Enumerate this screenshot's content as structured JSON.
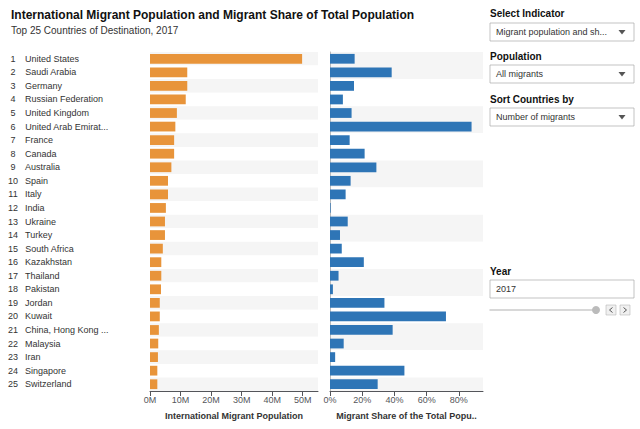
{
  "chart_data": [
    {
      "type": "bar",
      "orientation": "horizontal",
      "title": "International Migrant Population and Migrant Share of Total Population",
      "subtitle": "Top 25 Countries of Destination, 2017",
      "categories": [
        "United States",
        "Saudi Arabia",
        "Germany",
        "Russian Federation",
        "United Kingdom",
        "United Arab Emirat...",
        "France",
        "Canada",
        "Australia",
        "Spain",
        "Italy",
        "India",
        "Ukraine",
        "Turkey",
        "South Africa",
        "Kazakhstan",
        "Thailand",
        "Pakistan",
        "Jordan",
        "Kuwait",
        "China, Hong Kong ...",
        "Malaysia",
        "Iran",
        "Singapore",
        "Switzerland"
      ],
      "ranks": [
        1,
        2,
        3,
        4,
        5,
        6,
        7,
        8,
        9,
        10,
        11,
        12,
        13,
        14,
        15,
        16,
        17,
        18,
        19,
        20,
        21,
        22,
        23,
        24,
        25
      ],
      "values": [
        49.8,
        12.2,
        12.2,
        11.7,
        8.8,
        8.3,
        7.9,
        7.9,
        7.0,
        5.9,
        5.9,
        5.2,
        4.9,
        4.9,
        4.2,
        3.7,
        3.7,
        3.6,
        3.2,
        3.2,
        2.9,
        2.7,
        2.6,
        2.4,
        2.4
      ],
      "color": "#E8943A",
      "xlabel": "International Migrant Population",
      "xlim": [
        0,
        55
      ],
      "xticks": [
        {
          "value": 0,
          "label": "0M"
        },
        {
          "value": 10,
          "label": "10M"
        },
        {
          "value": 20,
          "label": "20M"
        },
        {
          "value": 30,
          "label": "30M"
        },
        {
          "value": 40,
          "label": "40M"
        },
        {
          "value": 50,
          "label": "50M"
        }
      ],
      "grid": false,
      "dropdowns": [
        {
          "label": "Select Indicator",
          "value": "Migrant population and sh..."
        },
        {
          "label": "Population",
          "value": "All migrants"
        },
        {
          "label": "Sort Countries by",
          "value": "Number of migrants"
        }
      ],
      "slider": {
        "label": "Year",
        "value": "2017"
      }
    },
    {
      "type": "bar",
      "orientation": "horizontal",
      "categories": [
        "United States",
        "Saudi Arabia",
        "Germany",
        "Russian Federation",
        "United Kingdom",
        "United Arab Emirat...",
        "France",
        "Canada",
        "Australia",
        "Spain",
        "Italy",
        "India",
        "Ukraine",
        "Turkey",
        "South Africa",
        "Kazakhstan",
        "Thailand",
        "Pakistan",
        "Jordan",
        "Kuwait",
        "China, Hong Kong ...",
        "Malaysia",
        "Iran",
        "Singapore",
        "Switzerland"
      ],
      "values": [
        15.3,
        38.3,
        14.9,
        8.0,
        13.4,
        87.9,
        12.2,
        21.5,
        28.8,
        12.8,
        9.7,
        0.4,
        11.0,
        6.2,
        7.3,
        21.0,
        5.3,
        1.8,
        33.8,
        72.0,
        38.9,
        8.5,
        3.2,
        46.2,
        29.6
      ],
      "color": "#2E75B6",
      "xlabel": "Migrant Share of the Total Popu..",
      "xlim": [
        0,
        95
      ],
      "xticks": [
        {
          "value": 0,
          "label": "0%"
        },
        {
          "value": 20,
          "label": "20%"
        },
        {
          "value": 40,
          "label": "40%"
        },
        {
          "value": 60,
          "label": "60%"
        },
        {
          "value": 80,
          "label": "80%"
        }
      ],
      "grid": false
    }
  ]
}
